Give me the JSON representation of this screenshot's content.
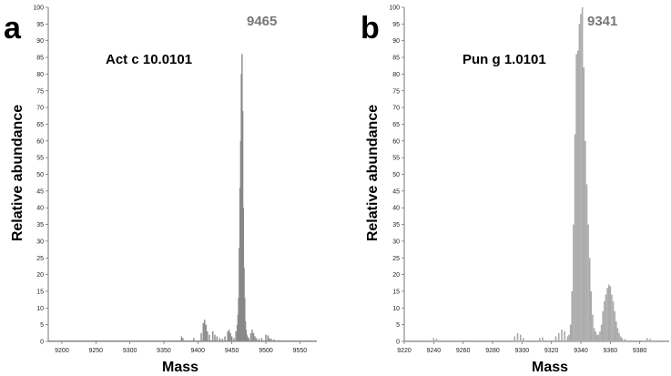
{
  "chart_data": [
    {
      "type": "bar",
      "panel_label": "a",
      "protein": "Act c 10.0101",
      "peak_label": "9465",
      "xlabel": "Mass",
      "ylabel": "Relative abundance",
      "xlim": [
        9180,
        9575
      ],
      "ylim": [
        0,
        100
      ],
      "xticks": [
        9200,
        9250,
        9300,
        9350,
        9400,
        9450,
        9500,
        9550
      ],
      "yticks": [
        0,
        5,
        10,
        15,
        20,
        25,
        30,
        35,
        40,
        45,
        50,
        55,
        60,
        65,
        70,
        75,
        80,
        85,
        90,
        95,
        100
      ],
      "color": "#888888",
      "grid": false,
      "x": [
        9376,
        9378,
        9394,
        9405,
        9408,
        9410,
        9412,
        9414,
        9417,
        9422,
        9425,
        9428,
        9432,
        9436,
        9440,
        9444,
        9446,
        9448,
        9450,
        9453,
        9456,
        9458,
        9459,
        9460,
        9461,
        9462,
        9463,
        9464,
        9465,
        9466,
        9467,
        9468,
        9469,
        9470,
        9471,
        9472,
        9473,
        9475,
        9478,
        9480,
        9482,
        9484,
        9486,
        9490,
        9494,
        9500,
        9503,
        9505,
        9508,
        9512,
        9520
      ],
      "values": [
        1.5,
        1.0,
        1.0,
        2.5,
        5.5,
        6.5,
        5.0,
        3.0,
        2.0,
        3.0,
        2.0,
        1.5,
        1.0,
        0.8,
        1.5,
        3.0,
        3.5,
        2.5,
        1.5,
        1.0,
        3.0,
        5.0,
        8.0,
        13.0,
        28.0,
        46.0,
        60.0,
        80.0,
        86.0,
        69.0,
        40.0,
        22.0,
        13.0,
        6.0,
        3.5,
        2.0,
        1.5,
        1.0,
        2.5,
        3.5,
        2.5,
        1.5,
        1.0,
        0.8,
        1.0,
        2.0,
        1.8,
        1.0,
        0.8,
        0.6,
        0.4
      ]
    },
    {
      "type": "bar",
      "panel_label": "b",
      "protein": "Pun g 1.0101",
      "peak_label": "9341",
      "xlabel": "Mass",
      "ylabel": "Relative abundance",
      "xlim": [
        9220,
        9400
      ],
      "ylim": [
        0,
        100
      ],
      "xticks": [
        9220,
        9240,
        9260,
        9280,
        9300,
        9320,
        9340,
        9360,
        9380
      ],
      "yticks": [
        0,
        5,
        10,
        15,
        20,
        25,
        30,
        35,
        40,
        45,
        50,
        55,
        60,
        65,
        70,
        75,
        80,
        85,
        90,
        95,
        100
      ],
      "color": "#aaaaaa",
      "grid": false,
      "x": [
        9240,
        9242,
        9295,
        9297,
        9299,
        9301,
        9312,
        9314,
        9323,
        9325,
        9327,
        9329,
        9331,
        9332,
        9333,
        9334,
        9335,
        9336,
        9337,
        9338,
        9339,
        9340,
        9341,
        9342,
        9343,
        9344,
        9345,
        9346,
        9347,
        9348,
        9349,
        9350,
        9351,
        9352,
        9353,
        9354,
        9355,
        9356,
        9357,
        9358,
        9359,
        9360,
        9361,
        9362,
        9363,
        9364,
        9365,
        9366,
        9367,
        9368,
        9370,
        9385,
        9387
      ],
      "values": [
        1.0,
        0.8,
        1.5,
        2.5,
        2.0,
        1.0,
        1.0,
        1.2,
        1.5,
        2.5,
        3.5,
        3.0,
        1.5,
        2.0,
        5.0,
        15.0,
        35.0,
        62.0,
        86.0,
        87.0,
        95.0,
        98.0,
        100.0,
        82.0,
        60.0,
        47.0,
        35.0,
        25.0,
        15.0,
        8.0,
        4.0,
        3.0,
        2.0,
        2.0,
        3.0,
        5.0,
        9.0,
        12.0,
        14.0,
        16.0,
        17.0,
        16.5,
        14.0,
        12.0,
        9.0,
        6.0,
        4.0,
        2.5,
        1.5,
        1.0,
        0.7,
        1.0,
        0.8
      ]
    }
  ]
}
